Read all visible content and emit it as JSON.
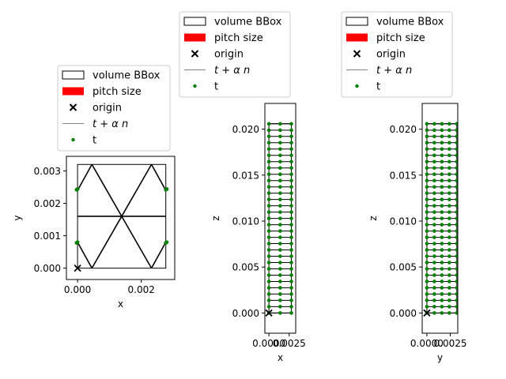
{
  "chart_data": [
    {
      "type": "scatter",
      "panel": "xy",
      "xlabel": "x",
      "ylabel": "y",
      "xlim": [
        -0.00035,
        0.00305
      ],
      "ylim": [
        -0.00035,
        0.00345
      ],
      "xticks": [
        {
          "v": 0.0,
          "label": "0.000"
        },
        {
          "v": 0.002,
          "label": "0.002"
        }
      ],
      "yticks": [
        {
          "v": 0.0,
          "label": "0.000"
        },
        {
          "v": 0.001,
          "label": "0.001"
        },
        {
          "v": 0.002,
          "label": "0.002"
        },
        {
          "v": 0.003,
          "label": "0.003"
        }
      ],
      "bbox": {
        "x": [
          0.0,
          0.00277
        ],
        "y": [
          0.0,
          0.0032
        ]
      },
      "lines": [
        [
          [
            0.00045,
            0.0032
          ],
          [
            0.00232,
            0.0
          ]
        ],
        [
          [
            0.00232,
            0.0032
          ],
          [
            0.00045,
            0.0
          ]
        ],
        [
          [
            0.0,
            0.0016
          ],
          [
            0.00277,
            0.0016
          ]
        ],
        [
          [
            0.0,
            0.0024
          ],
          [
            0.00045,
            0.0032
          ]
        ],
        [
          [
            0.0,
            0.0008
          ],
          [
            0.00045,
            0.0
          ]
        ],
        [
          [
            0.00277,
            0.0024
          ],
          [
            0.00232,
            0.0032
          ]
        ],
        [
          [
            0.00277,
            0.0008
          ],
          [
            0.00232,
            0.0
          ]
        ]
      ],
      "points": [
        [
          -3e-05,
          0.00242
        ],
        [
          0.0,
          0.00244
        ],
        [
          -3e-05,
          0.00078
        ],
        [
          0.0,
          0.0008
        ],
        [
          0.00277,
          0.00242
        ],
        [
          0.0028,
          0.00244
        ],
        [
          0.00277,
          0.00078
        ],
        [
          0.0028,
          0.0008
        ]
      ],
      "origin": [
        0.0,
        0.0
      ],
      "legend": [
        "volume BBox",
        "pitch size",
        "origin",
        "$t + \\alpha n$",
        "t"
      ],
      "legend_placement": "above"
    },
    {
      "type": "scatter",
      "panel": "xz",
      "xlabel": "x",
      "ylabel": "z",
      "xlim": [
        -0.0005,
        0.0033
      ],
      "ylim": [
        -0.0022,
        0.0228
      ],
      "xticks": [
        {
          "v": 0.0,
          "label": "0.0000"
        },
        {
          "v": 0.0025,
          "label": "0.0025"
        }
      ],
      "yticks": [
        {
          "v": 0.0,
          "label": "0.000"
        },
        {
          "v": 0.005,
          "label": "0.005"
        },
        {
          "v": 0.01,
          "label": "0.010"
        },
        {
          "v": 0.015,
          "label": "0.015"
        },
        {
          "v": 0.02,
          "label": "0.020"
        }
      ],
      "bbox": {
        "x": [
          0.0,
          0.00277
        ],
        "z": [
          0.0,
          0.0206
        ]
      },
      "layers": 31,
      "layer_pitch": 0.000686,
      "point_columns": [
        0.0,
        0.00139,
        0.00277
      ],
      "origin": [
        0.0,
        0.0
      ],
      "legend": [
        "volume BBox",
        "pitch size",
        "origin",
        "$t + \\alpha n$",
        "t"
      ],
      "legend_placement": "above"
    },
    {
      "type": "scatter",
      "panel": "yz",
      "xlabel": "y",
      "ylabel": "z",
      "xlim": [
        -0.0005,
        0.0033
      ],
      "ylim": [
        -0.0022,
        0.0228
      ],
      "xticks": [
        {
          "v": 0.0,
          "label": "0.0000"
        },
        {
          "v": 0.0025,
          "label": "0.0025"
        }
      ],
      "yticks": [
        {
          "v": 0.0,
          "label": "0.000"
        },
        {
          "v": 0.005,
          "label": "0.005"
        },
        {
          "v": 0.01,
          "label": "0.010"
        },
        {
          "v": 0.015,
          "label": "0.015"
        },
        {
          "v": 0.02,
          "label": "0.020"
        }
      ],
      "bbox": {
        "y": [
          0.0,
          0.0032
        ],
        "z": [
          0.0,
          0.0206
        ]
      },
      "layers": 31,
      "layer_pitch": 0.000686,
      "point_columns": [
        0.0,
        0.0008,
        0.0016,
        0.0024,
        0.0032
      ],
      "origin": [
        0.0,
        0.0
      ],
      "legend": [
        "volume BBox",
        "pitch size",
        "origin",
        "$t + \\alpha n$",
        "t"
      ],
      "legend_placement": "above"
    }
  ],
  "colors": {
    "bbox": "#000000",
    "pitch": "#ff0000",
    "origin": "#000000",
    "line": "#808080",
    "point": "#008000"
  }
}
